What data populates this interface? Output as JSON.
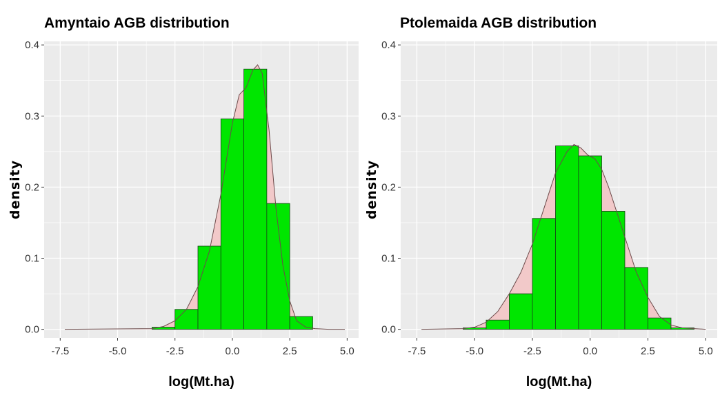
{
  "chart_data": [
    {
      "type": "histogram",
      "title": "Amyntaio AGB distribution",
      "xlabel": "log(Mt.ha)",
      "ylabel": "density",
      "xlim": [
        -8.2,
        5.5
      ],
      "ylim": [
        -0.012,
        0.405
      ],
      "x_ticks": [
        -7.5,
        -5.0,
        -2.5,
        0.0,
        2.5,
        5.0
      ],
      "x_tick_labels": [
        "-7.5",
        "-5.0",
        "-2.5",
        "0.0",
        "2.5",
        "5.0"
      ],
      "y_ticks": [
        0.0,
        0.1,
        0.2,
        0.3,
        0.4
      ],
      "y_tick_labels": [
        "0.0",
        "0.1",
        "0.2",
        "0.3",
        "0.4"
      ],
      "grid": true,
      "bins": [
        {
          "x0": -3.5,
          "x1": -2.5,
          "density": 0.003
        },
        {
          "x0": -2.5,
          "x1": -1.5,
          "density": 0.028
        },
        {
          "x0": -1.5,
          "x1": -0.5,
          "density": 0.117
        },
        {
          "x0": -0.5,
          "x1": 0.5,
          "density": 0.296
        },
        {
          "x0": 0.5,
          "x1": 1.5,
          "density": 0.366
        },
        {
          "x0": 1.5,
          "x1": 2.5,
          "density": 0.177
        },
        {
          "x0": 2.5,
          "x1": 3.5,
          "density": 0.018
        }
      ],
      "density_curve": {
        "x": [
          -7.3,
          -3.5,
          -3.0,
          -2.5,
          -2.0,
          -1.5,
          -1.0,
          -0.5,
          0.0,
          0.3,
          0.6,
          0.9,
          1.1,
          1.3,
          1.6,
          1.9,
          2.2,
          2.5,
          2.8,
          3.2,
          3.6,
          4.2,
          4.9
        ],
        "y": [
          0.0,
          0.001,
          0.004,
          0.012,
          0.028,
          0.06,
          0.11,
          0.19,
          0.29,
          0.33,
          0.34,
          0.365,
          0.372,
          0.36,
          0.28,
          0.17,
          0.09,
          0.04,
          0.012,
          0.003,
          0.001,
          0.0,
          0.0
        ]
      },
      "colors": {
        "bar_fill": "#00e600",
        "bar_stroke": "#1a3d1a",
        "density_fill": "#f2c9c9",
        "density_line": "#6b4a4a",
        "panel_bg": "#ebebeb",
        "grid": "#ffffff"
      }
    },
    {
      "type": "histogram",
      "title": "Ptolemaida AGB distribution",
      "xlabel": "log(Mt.ha)",
      "ylabel": "density",
      "xlim": [
        -8.2,
        5.5
      ],
      "ylim": [
        -0.012,
        0.405
      ],
      "x_ticks": [
        -7.5,
        -5.0,
        -2.5,
        0.0,
        2.5,
        5.0
      ],
      "x_tick_labels": [
        "-7.5",
        "-5.0",
        "-2.5",
        "0.0",
        "2.5",
        "5.0"
      ],
      "y_ticks": [
        0.0,
        0.1,
        0.2,
        0.3,
        0.4
      ],
      "y_tick_labels": [
        "0.0",
        "0.1",
        "0.2",
        "0.3",
        "0.4"
      ],
      "grid": true,
      "bins": [
        {
          "x0": -5.5,
          "x1": -4.5,
          "density": 0.002
        },
        {
          "x0": -4.5,
          "x1": -3.5,
          "density": 0.013
        },
        {
          "x0": -3.5,
          "x1": -2.5,
          "density": 0.05
        },
        {
          "x0": -2.5,
          "x1": -1.5,
          "density": 0.156
        },
        {
          "x0": -1.5,
          "x1": -0.5,
          "density": 0.258
        },
        {
          "x0": -0.5,
          "x1": 0.5,
          "density": 0.244
        },
        {
          "x0": 0.5,
          "x1": 1.5,
          "density": 0.166
        },
        {
          "x0": 1.5,
          "x1": 2.5,
          "density": 0.087
        },
        {
          "x0": 2.5,
          "x1": 3.5,
          "density": 0.016
        },
        {
          "x0": 3.5,
          "x1": 4.5,
          "density": 0.002
        }
      ],
      "density_curve": {
        "x": [
          -7.3,
          -5.5,
          -5.0,
          -4.5,
          -4.0,
          -3.5,
          -3.0,
          -2.5,
          -2.0,
          -1.5,
          -1.0,
          -0.7,
          -0.4,
          -0.1,
          0.2,
          0.5,
          0.8,
          1.2,
          1.6,
          2.0,
          2.5,
          3.0,
          3.5,
          4.0,
          4.5,
          5.0
        ],
        "y": [
          0.0,
          0.001,
          0.003,
          0.01,
          0.025,
          0.05,
          0.08,
          0.12,
          0.17,
          0.22,
          0.25,
          0.26,
          0.255,
          0.245,
          0.24,
          0.225,
          0.2,
          0.16,
          0.12,
          0.08,
          0.045,
          0.018,
          0.006,
          0.002,
          0.001,
          0.0
        ]
      },
      "colors": {
        "bar_fill": "#00e600",
        "bar_stroke": "#1a3d1a",
        "density_fill": "#f2c9c9",
        "density_line": "#6b4a4a",
        "panel_bg": "#ebebeb",
        "grid": "#ffffff"
      }
    }
  ]
}
